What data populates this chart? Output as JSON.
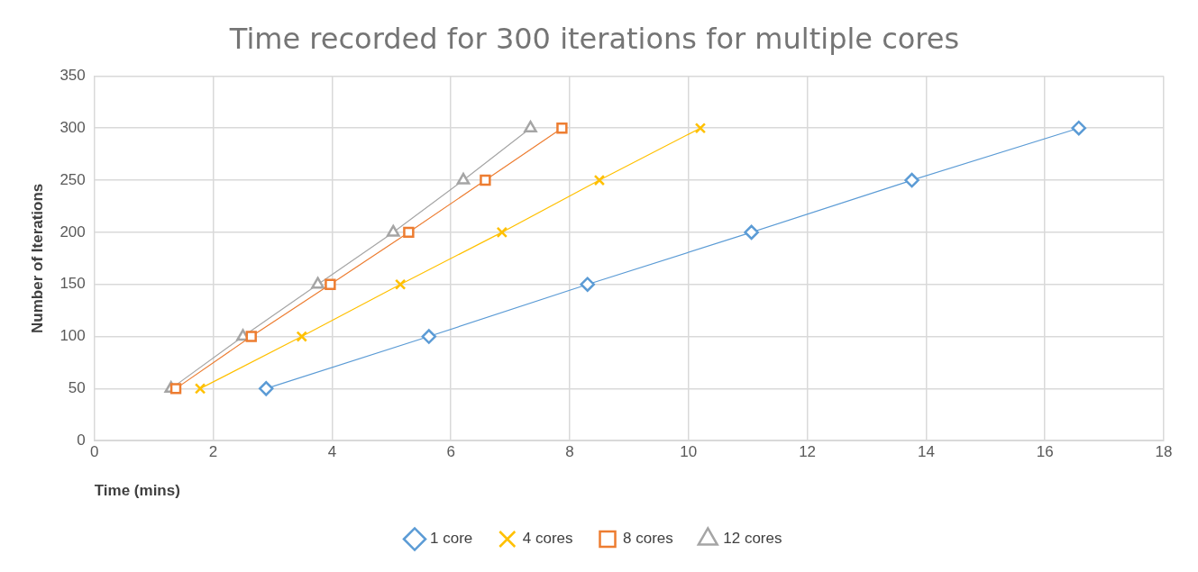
{
  "chart_data": {
    "type": "line",
    "title": "Time recorded for 300 iterations for multiple cores",
    "xlabel": "Time (mins)",
    "ylabel": "Number of Iterations",
    "xlim": [
      0,
      18
    ],
    "xticks": [
      0,
      2,
      4,
      6,
      8,
      10,
      12,
      14,
      16,
      18
    ],
    "ylim": [
      0,
      350
    ],
    "yticks": [
      0,
      50,
      100,
      150,
      200,
      250,
      300,
      350
    ],
    "grid": true,
    "legend": "bottom",
    "line_style": "solid",
    "series": [
      {
        "name": "1 core",
        "color": "#5b9bd5",
        "marker": "diamond",
        "x": [
          2.89,
          5.63,
          8.3,
          11.06,
          13.76,
          16.57
        ],
        "values": [
          50,
          100,
          150,
          200,
          250,
          300
        ]
      },
      {
        "name": "4 cores",
        "color": "#ffc000",
        "marker": "cross",
        "x": [
          1.78,
          3.49,
          5.15,
          6.86,
          8.5,
          10.2
        ],
        "values": [
          50,
          100,
          150,
          200,
          250,
          300
        ]
      },
      {
        "name": "8 cores",
        "color": "#ed7d31",
        "marker": "square",
        "x": [
          1.37,
          2.64,
          3.97,
          5.29,
          6.58,
          7.87
        ],
        "values": [
          50,
          100,
          150,
          200,
          250,
          300
        ]
      },
      {
        "name": "12 cores",
        "color": "#a5a5a5",
        "marker": "triangle",
        "x": [
          1.29,
          2.5,
          3.76,
          5.03,
          6.21,
          7.34
        ],
        "values": [
          50,
          100,
          150,
          200,
          250,
          300
        ]
      }
    ]
  }
}
